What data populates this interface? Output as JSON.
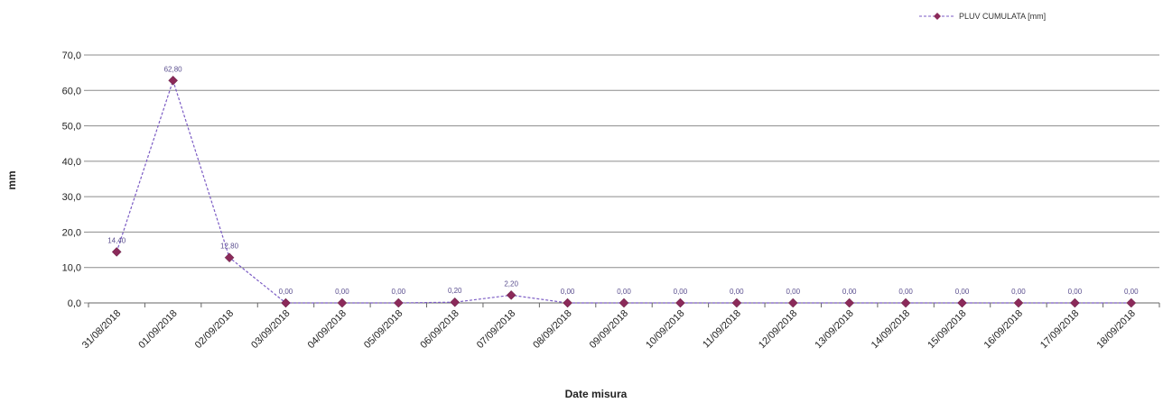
{
  "chart_data": {
    "type": "line",
    "title": "",
    "xlabel": "Date misura",
    "ylabel": "mm",
    "ylim": [
      0,
      70
    ],
    "yticks": [
      "0,0",
      "10,0",
      "20,0",
      "30,0",
      "40,0",
      "50,0",
      "60,0",
      "70,0"
    ],
    "grid": true,
    "legend_position": "top-right",
    "categories": [
      "31/08/2018",
      "01/09/2018",
      "02/09/2018",
      "03/09/2018",
      "04/09/2018",
      "05/09/2018",
      "06/09/2018",
      "07/09/2018",
      "08/09/2018",
      "09/09/2018",
      "10/09/2018",
      "11/09/2018",
      "12/09/2018",
      "13/09/2018",
      "14/09/2018",
      "15/09/2018",
      "16/09/2018",
      "17/09/2018",
      "18/09/2018"
    ],
    "series": [
      {
        "name": "PLUV CUMULATA [mm]",
        "color": "#8b2a5a",
        "line_color": "#7b5bc4",
        "line_style": "dashed",
        "marker": "diamond",
        "values": [
          14.4,
          62.8,
          12.8,
          0,
          0,
          0,
          0.2,
          2.2,
          0,
          0,
          0,
          0,
          0,
          0,
          0,
          0,
          0,
          0,
          0
        ],
        "value_labels": [
          "14,40",
          "62,80",
          "12,80",
          "0,00",
          "0,00",
          "0,00",
          "0,20",
          "2,20",
          "0,00",
          "0,00",
          "0,00",
          "0,00",
          "0,00",
          "0,00",
          "0,00",
          "0,00",
          "0,00",
          "0,00",
          "0,00"
        ]
      }
    ]
  }
}
